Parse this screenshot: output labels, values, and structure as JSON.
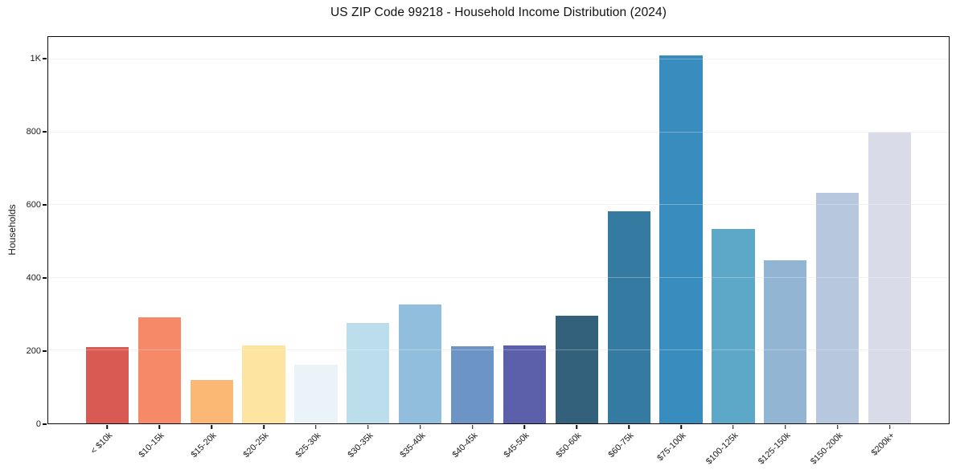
{
  "colors": {
    "background": "#ffffff",
    "spine": "#0a0a0a",
    "grid": "#ebebeb",
    "grid_overlay": "rgba(255,255,255,0.30)",
    "text": "#1a1a1a"
  },
  "chart_data": {
    "type": "bar",
    "title": "US ZIP Code 99218 - Household Income Distribution (2024)",
    "xlabel": "",
    "ylabel": "Households",
    "ylim": [
      0,
      1062
    ],
    "grid": "horizontal",
    "legend": "none",
    "categories": [
      "< $10k",
      "$10-15k",
      "$15-20k",
      "$20-25k",
      "$25-30k",
      "$30-35k",
      "$35-40k",
      "$40-45k",
      "$45-50k",
      "$50-60k",
      "$60-75k",
      "$75-100k",
      "$100-125k",
      "$125-150k",
      "$150-200k",
      "$200k+"
    ],
    "values": [
      210,
      292,
      120,
      215,
      162,
      276,
      327,
      213,
      214,
      296,
      584,
      1011,
      534,
      449,
      634,
      800
    ],
    "bar_colors": [
      "#d95a52",
      "#f68a68",
      "#fbb875",
      "#fde4a0",
      "#e9f3f8",
      "#bcdeec",
      "#92bedd",
      "#6c94c5",
      "#5c5fa9",
      "#33607a",
      "#347aa1",
      "#398cbe",
      "#5da7c8",
      "#91b5d3",
      "#b7c8de",
      "#d9dbe8"
    ],
    "yticks": [
      {
        "value": 0,
        "label": "0"
      },
      {
        "value": 200,
        "label": "200"
      },
      {
        "value": 400,
        "label": "400"
      },
      {
        "value": 600,
        "label": "600"
      },
      {
        "value": 800,
        "label": "800"
      },
      {
        "value": 1000,
        "label": "1K"
      }
    ]
  }
}
